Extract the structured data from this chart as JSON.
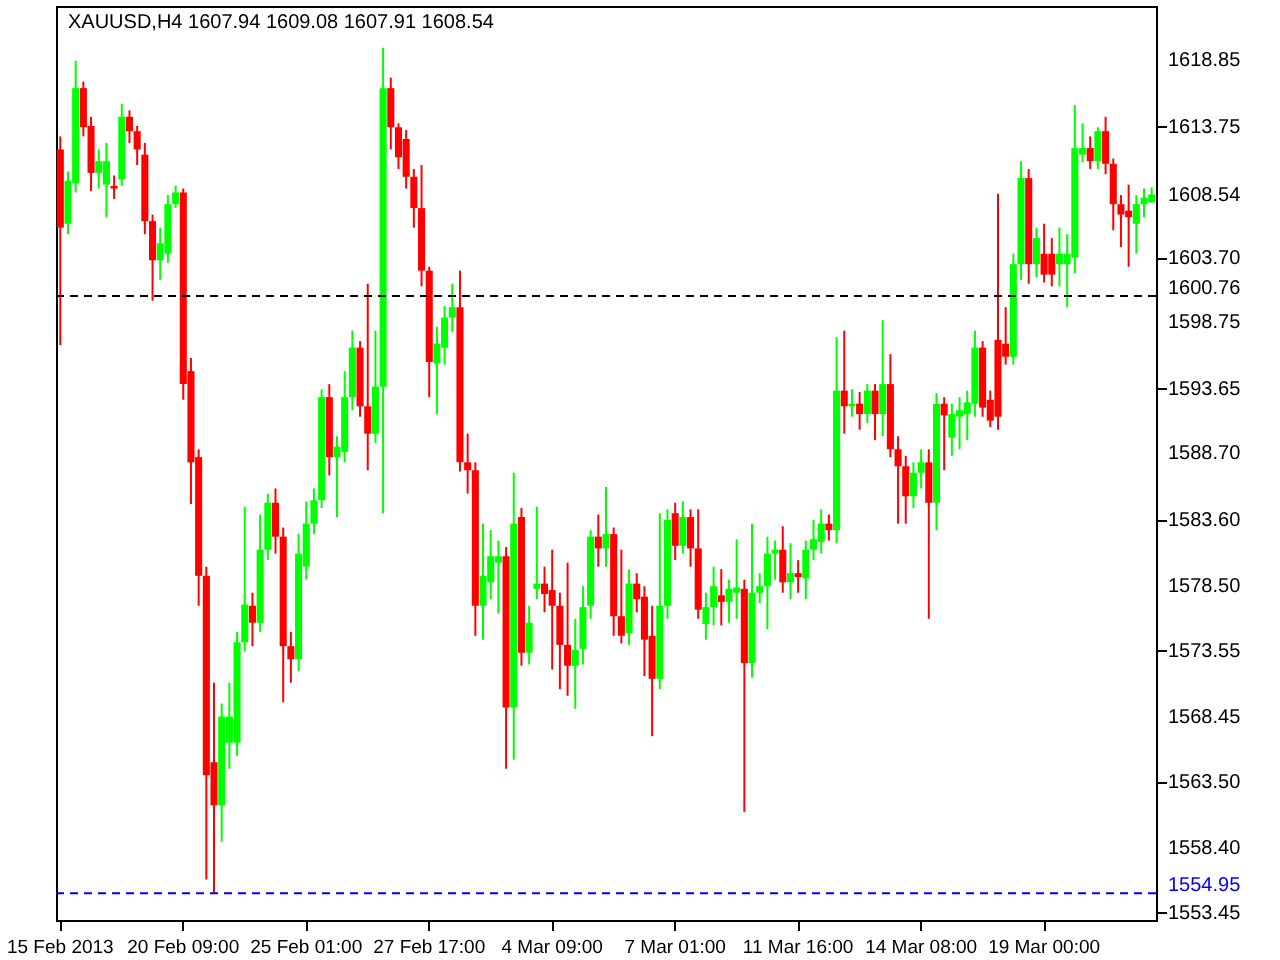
{
  "chart_data": {
    "type": "candlestick",
    "title": "XAUUSD,H4  1607.94 1609.08 1607.91 1608.54",
    "categories": [
      "15 Feb 2013",
      null,
      null,
      null,
      null,
      null,
      null,
      null,
      null,
      null,
      null,
      null,
      null,
      null,
      null,
      null,
      "20 Feb 09:00",
      null,
      null,
      null,
      null,
      null,
      null,
      null,
      null,
      null,
      null,
      null,
      null,
      null,
      null,
      null,
      "25 Feb 01:00",
      null,
      null,
      null,
      null,
      null,
      null,
      null,
      null,
      null,
      null,
      null,
      null,
      null,
      null,
      null,
      "27 Feb 17:00",
      null,
      null,
      null,
      null,
      null,
      null,
      null,
      null,
      null,
      null,
      null,
      null,
      null,
      null,
      null,
      "4 Mar 09:00",
      null,
      null,
      null,
      null,
      null,
      null,
      null,
      null,
      null,
      null,
      null,
      null,
      null,
      null,
      null,
      "7 Mar 01:00",
      null,
      null,
      null,
      null,
      null,
      null,
      null,
      null,
      null,
      null,
      null,
      null,
      null,
      null,
      null,
      "11 Mar 16:00",
      null,
      null,
      null,
      null,
      null,
      null,
      null,
      null,
      null,
      null,
      null,
      null,
      null,
      null,
      null,
      "14 Mar 08:00",
      null,
      null,
      null,
      null,
      null,
      null,
      null,
      null,
      null,
      null,
      null,
      null,
      null,
      null,
      null,
      "19 Mar 00:00",
      null,
      null,
      null,
      null,
      null,
      null,
      null,
      null,
      null,
      null,
      null,
      null,
      null,
      null
    ],
    "ohlc": [
      [
        1612,
        1613,
        1597,
        1606
      ],
      [
        1606.3,
        1610.3,
        1605.5,
        1609.6
      ],
      [
        1609.4,
        1618.8,
        1608.7,
        1616.7
      ],
      [
        1616.7,
        1617.2,
        1613,
        1613.7
      ],
      [
        1613.8,
        1614.5,
        1608.8,
        1610.2
      ],
      [
        1610.2,
        1612,
        1609,
        1611.1
      ],
      [
        1609.3,
        1612.5,
        1606.8,
        1611.1
      ],
      [
        1609.2,
        1610,
        1608.2,
        1609
      ],
      [
        1609.7,
        1615.5,
        1609.2,
        1614.5
      ],
      [
        1614.5,
        1615,
        1612.5,
        1613.4
      ],
      [
        1613.4,
        1613.8,
        1610.8,
        1612
      ],
      [
        1611.6,
        1612.5,
        1605.5,
        1606.5
      ],
      [
        1606.5,
        1607,
        1600.4,
        1603.5
      ],
      [
        1603.5,
        1606,
        1602,
        1604.8
      ],
      [
        1604,
        1608.5,
        1603.3,
        1607.8
      ],
      [
        1607.8,
        1609.2,
        1607.5,
        1608.7
      ],
      [
        1608.7,
        1609,
        1592.8,
        1594
      ],
      [
        1595,
        1596,
        1584.8,
        1588
      ],
      [
        1588.4,
        1589,
        1577,
        1579.3
      ],
      [
        1579.3,
        1580,
        1556,
        1564
      ],
      [
        1565,
        1571.1,
        1554.95,
        1561.7
      ],
      [
        1561.7,
        1569.5,
        1558.9,
        1568.5
      ],
      [
        1566.5,
        1571.1,
        1564.5,
        1568.5
      ],
      [
        1566.5,
        1575,
        1565.5,
        1574.2
      ],
      [
        1574.2,
        1584.6,
        1573.5,
        1577.1
      ],
      [
        1577,
        1578,
        1573.9,
        1575.7
      ],
      [
        1575.7,
        1584,
        1575,
        1581.3
      ],
      [
        1581.3,
        1585.6,
        1580.5,
        1584.9
      ],
      [
        1584.9,
        1586,
        1581,
        1582.3
      ],
      [
        1582.3,
        1583,
        1569.6,
        1573.9
      ],
      [
        1573.9,
        1575,
        1571.1,
        1572.9
      ],
      [
        1572.9,
        1582.5,
        1572,
        1581
      ],
      [
        1580,
        1585,
        1579,
        1583.3
      ],
      [
        1583.3,
        1586,
        1582.5,
        1585.1
      ],
      [
        1585.1,
        1593.6,
        1584.5,
        1593
      ],
      [
        1593,
        1594,
        1587,
        1588.4
      ],
      [
        1588.4,
        1590,
        1583.8,
        1589.2
      ],
      [
        1588.8,
        1595,
        1588,
        1593
      ],
      [
        1593,
        1598.1,
        1592,
        1596.8
      ],
      [
        1596.8,
        1597.3,
        1591.5,
        1592.3
      ],
      [
        1592.3,
        1601.7,
        1587.4,
        1590.2
      ],
      [
        1590.2,
        1598.1,
        1589.5,
        1593.8
      ],
      [
        1593.8,
        1619.8,
        1584.1,
        1616.7
      ],
      [
        1616.7,
        1617.5,
        1612,
        1613.7
      ],
      [
        1613.7,
        1614,
        1610.5,
        1611.4
      ],
      [
        1612.8,
        1613.5,
        1609,
        1609.9
      ],
      [
        1609.9,
        1610.5,
        1606,
        1607.5
      ],
      [
        1607.5,
        1610.8,
        1601.5,
        1602.7
      ],
      [
        1602.7,
        1603,
        1593,
        1595.7
      ],
      [
        1595.6,
        1598.4,
        1591.7,
        1597.1
      ],
      [
        1596.8,
        1600,
        1595.5,
        1599.1
      ],
      [
        1599.1,
        1601.7,
        1598,
        1599.9
      ],
      [
        1599.9,
        1602.7,
        1587.3,
        1588
      ],
      [
        1588,
        1590.2,
        1585.6,
        1587.4
      ],
      [
        1587.4,
        1588,
        1574.7,
        1577
      ],
      [
        1577,
        1583.3,
        1574.4,
        1579.3
      ],
      [
        1578.8,
        1582.8,
        1577.5,
        1580.8
      ],
      [
        1580.3,
        1582,
        1576.4,
        1580.8
      ],
      [
        1580.8,
        1581.5,
        1564.5,
        1569.2
      ],
      [
        1569.2,
        1587.2,
        1565.2,
        1583.3
      ],
      [
        1583.8,
        1584.5,
        1572.4,
        1573.4
      ],
      [
        1573.4,
        1577,
        1572.5,
        1575.7
      ],
      [
        1578.3,
        1584.6,
        1577.5,
        1578.7
      ],
      [
        1578.7,
        1580,
        1576.5,
        1577.9
      ],
      [
        1578.2,
        1581.3,
        1572.1,
        1577
      ],
      [
        1577,
        1578,
        1570.6,
        1574
      ],
      [
        1574,
        1580.3,
        1570.1,
        1572.4
      ],
      [
        1572.4,
        1576,
        1569.1,
        1573.6
      ],
      [
        1573.7,
        1578.5,
        1572.5,
        1576.9
      ],
      [
        1577,
        1582.8,
        1576,
        1582.3
      ],
      [
        1582.3,
        1584,
        1580,
        1581.4
      ],
      [
        1581.4,
        1586.1,
        1580,
        1582.5
      ],
      [
        1582.5,
        1583,
        1574.7,
        1576.2
      ],
      [
        1576.2,
        1581.3,
        1574.1,
        1574.7
      ],
      [
        1574.9,
        1579.8,
        1574,
        1578.7
      ],
      [
        1578.7,
        1579.5,
        1576.5,
        1577.5
      ],
      [
        1577.7,
        1578.5,
        1571.6,
        1574.4
      ],
      [
        1574.7,
        1577,
        1567,
        1571.4
      ],
      [
        1571.4,
        1584.1,
        1570.6,
        1577
      ],
      [
        1577,
        1584.4,
        1576,
        1583.6
      ],
      [
        1584.1,
        1584.9,
        1580.5,
        1581.6
      ],
      [
        1581.6,
        1585,
        1581,
        1583.8
      ],
      [
        1583.8,
        1584.4,
        1580,
        1581.4
      ],
      [
        1581.4,
        1584.4,
        1576,
        1576.7
      ],
      [
        1575.6,
        1578,
        1574.4,
        1576.9
      ],
      [
        1576.9,
        1580,
        1575.5,
        1578.5
      ],
      [
        1577.8,
        1579.8,
        1575.5,
        1577.3
      ],
      [
        1577.3,
        1579,
        1575.7,
        1578.3
      ],
      [
        1578,
        1582.1,
        1576,
        1578.4
      ],
      [
        1578.3,
        1579,
        1561.2,
        1572.6
      ],
      [
        1572.6,
        1583.3,
        1571.5,
        1578
      ],
      [
        1578,
        1579.5,
        1577.2,
        1578.5
      ],
      [
        1578.5,
        1582.3,
        1575.2,
        1581
      ],
      [
        1581,
        1582,
        1579,
        1581.3
      ],
      [
        1581.3,
        1583.1,
        1578,
        1578.8
      ],
      [
        1578.8,
        1581.8,
        1577.5,
        1579.5
      ],
      [
        1579.5,
        1580.5,
        1578,
        1579.2
      ],
      [
        1579.1,
        1582,
        1577.5,
        1581.3
      ],
      [
        1581.3,
        1583.6,
        1580.5,
        1582.1
      ],
      [
        1581.9,
        1584.4,
        1581,
        1583.3
      ],
      [
        1583.3,
        1584,
        1582,
        1582.8
      ],
      [
        1582.8,
        1597.6,
        1581.8,
        1593.5
      ],
      [
        1593.5,
        1598.1,
        1590.2,
        1592.3
      ],
      [
        1592.3,
        1593.6,
        1591.5,
        1592.5
      ],
      [
        1592.5,
        1593.4,
        1590.5,
        1591.7
      ],
      [
        1591.7,
        1594,
        1591,
        1593.5
      ],
      [
        1593.5,
        1594,
        1589.7,
        1591.7
      ],
      [
        1591.7,
        1598.9,
        1590,
        1594
      ],
      [
        1594,
        1596.3,
        1588.4,
        1589
      ],
      [
        1589,
        1590,
        1583.3,
        1587.7
      ],
      [
        1587.7,
        1588.5,
        1583.3,
        1585.4
      ],
      [
        1585.4,
        1588,
        1584.5,
        1587.2
      ],
      [
        1587.2,
        1589,
        1586,
        1588
      ],
      [
        1588,
        1589,
        1576,
        1584.9
      ],
      [
        1584.9,
        1593.3,
        1582.8,
        1592.5
      ],
      [
        1592.5,
        1593,
        1587.4,
        1591.6
      ],
      [
        1589.9,
        1592.5,
        1588.5,
        1591.7
      ],
      [
        1591.5,
        1593,
        1589,
        1592
      ],
      [
        1591.7,
        1593.5,
        1589.7,
        1592.6
      ],
      [
        1592.5,
        1598.1,
        1591.5,
        1596.8
      ],
      [
        1596.8,
        1597.3,
        1591.5,
        1592.2
      ],
      [
        1592.8,
        1593.5,
        1590.7,
        1591.2
      ],
      [
        1597.4,
        1608.6,
        1590.5,
        1591.5
      ],
      [
        1597.1,
        1599.9,
        1595.5,
        1596.1
      ],
      [
        1596.1,
        1604,
        1595.5,
        1603.2
      ],
      [
        1603.2,
        1611.1,
        1602,
        1609.8
      ],
      [
        1609.8,
        1610.5,
        1601.7,
        1603.2
      ],
      [
        1603.2,
        1606,
        1602.2,
        1605.2
      ],
      [
        1604,
        1606.3,
        1601.8,
        1602.4
      ],
      [
        1604,
        1605.2,
        1601.5,
        1602.4
      ],
      [
        1603.2,
        1606,
        1601.5,
        1604
      ],
      [
        1603.2,
        1605.5,
        1599.9,
        1604
      ],
      [
        1603.7,
        1615.4,
        1602.5,
        1612.1
      ],
      [
        1611.6,
        1614,
        1611,
        1612.1
      ],
      [
        1612.1,
        1613,
        1610.5,
        1611.1
      ],
      [
        1611.1,
        1613.7,
        1610.5,
        1613.4
      ],
      [
        1613.4,
        1614.5,
        1610.1,
        1610.9
      ],
      [
        1610.9,
        1611.3,
        1605.8,
        1607.8
      ],
      [
        1607.8,
        1608.5,
        1604.5,
        1607
      ],
      [
        1607.3,
        1609.3,
        1603,
        1606.8
      ],
      [
        1606.3,
        1608.5,
        1604,
        1607.8
      ],
      [
        1607.8,
        1609,
        1606.8,
        1608.3
      ],
      [
        1607.94,
        1609.08,
        1607.91,
        1608.54
      ]
    ],
    "colors": [
      "#ff0000",
      "#00ff00",
      "#00ff00",
      "#ff0000",
      "#ff0000",
      "#00ff00",
      "#00ff00",
      "#ff0000",
      "#00ff00",
      "#ff0000",
      "#ff0000",
      "#ff0000",
      "#ff0000",
      "#00ff00",
      "#00ff00",
      "#00ff00",
      "#ff0000",
      "#ff0000",
      "#ff0000",
      "#ff0000",
      "#ff0000",
      "#00ff00",
      "#00ff00",
      "#00ff00",
      "#00ff00",
      "#ff0000",
      "#00ff00",
      "#00ff00",
      "#ff0000",
      "#ff0000",
      "#ff0000",
      "#00ff00",
      "#00ff00",
      "#00ff00",
      "#00ff00",
      "#ff0000",
      "#00ff00",
      "#00ff00",
      "#00ff00",
      "#ff0000",
      "#ff0000",
      "#00ff00",
      "#00ff00",
      "#ff0000",
      "#ff0000",
      "#ff0000",
      "#ff0000",
      "#ff0000",
      "#ff0000",
      "#00ff00",
      "#00ff00",
      "#00ff00",
      "#ff0000",
      "#ff0000",
      "#ff0000",
      "#00ff00",
      "#00ff00",
      "#00ff00",
      "#ff0000",
      "#00ff00",
      "#ff0000",
      "#00ff00",
      "#00ff00",
      "#ff0000",
      "#ff0000",
      "#ff0000",
      "#ff0000",
      "#00ff00",
      "#00ff00",
      "#00ff00",
      "#ff0000",
      "#00ff00",
      "#ff0000",
      "#ff0000",
      "#00ff00",
      "#ff0000",
      "#ff0000",
      "#ff0000",
      "#00ff00",
      "#00ff00",
      "#ff0000",
      "#00ff00",
      "#ff0000",
      "#ff0000",
      "#00ff00",
      "#00ff00",
      "#ff0000",
      "#00ff00",
      "#00ff00",
      "#ff0000",
      "#00ff00",
      "#00ff00",
      "#00ff00",
      "#00ff00",
      "#ff0000",
      "#00ff00",
      "#ff0000",
      "#00ff00",
      "#00ff00",
      "#00ff00",
      "#ff0000",
      "#00ff00",
      "#ff0000",
      "#00ff00",
      "#ff0000",
      "#00ff00",
      "#ff0000",
      "#00ff00",
      "#ff0000",
      "#ff0000",
      "#ff0000",
      "#00ff00",
      "#00ff00",
      "#ff0000",
      "#00ff00",
      "#ff0000",
      "#00ff00",
      "#00ff00",
      "#00ff00",
      "#00ff00",
      "#ff0000",
      "#ff0000",
      "#ff0000",
      "#ff0000",
      "#00ff00",
      "#00ff00",
      "#ff0000",
      "#00ff00",
      "#ff0000",
      "#ff0000",
      "#00ff00",
      "#00ff00",
      "#00ff00",
      "#00ff00",
      "#ff0000",
      "#00ff00",
      "#ff0000",
      "#ff0000",
      "#ff0000",
      "#ff0000",
      "#00ff00",
      "#00ff00",
      "#00ff00"
    ],
    "ylim": [
      1552.9,
      1623
    ],
    "yticks": [
      {
        "value": 1618.85,
        "label": "1618.85"
      },
      {
        "value": 1613.75,
        "label": "1613.75"
      },
      {
        "value": 1608.54,
        "label": "1608.54"
      },
      {
        "value": 1603.7,
        "label": "1603.70"
      },
      {
        "value": 1598.75,
        "label": "1598.75"
      },
      {
        "value": 1593.65,
        "label": "1593.65"
      },
      {
        "value": 1588.7,
        "label": "1588.70"
      },
      {
        "value": 1583.6,
        "label": "1583.60"
      },
      {
        "value": 1578.5,
        "label": "1578.50"
      },
      {
        "value": 1573.55,
        "label": "1573.55"
      },
      {
        "value": 1568.45,
        "label": "1568.45"
      },
      {
        "value": 1563.5,
        "label": "1563.50"
      },
      {
        "value": 1558.4,
        "label": "1558.40"
      },
      {
        "value": 1553.45,
        "label": "1553.45"
      }
    ],
    "ref_lines": [
      {
        "axis": "y",
        "value": 1600.76,
        "label": "1600.76",
        "color": "#000000",
        "line_style": "dashed"
      },
      {
        "axis": "y",
        "value": 1554.95,
        "label": "1554.95",
        "color": "#0000ff",
        "line_style": "dashed"
      }
    ],
    "grid": false
  }
}
